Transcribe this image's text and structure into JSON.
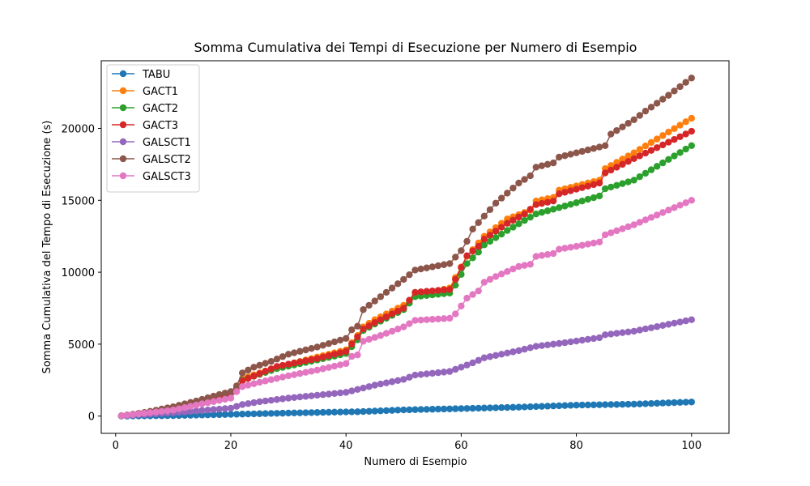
{
  "chart_data": {
    "type": "line",
    "title": "Somma Cumulativa dei Tempi di Esecuzione per Numero di Esempio",
    "xlabel": "Numero di Esempio",
    "ylabel": "Somma Cumulativa del Tempo di Esecuzione (s)",
    "xlim": [
      -2.5,
      106.5
    ],
    "ylim": [
      -1200,
      24700
    ],
    "x_ticks": [
      "0",
      "20",
      "40",
      "60",
      "80",
      "100"
    ],
    "x_tick_values": [
      0,
      20,
      40,
      60,
      80,
      100
    ],
    "y_ticks": [
      "0",
      "5000",
      "10000",
      "15000",
      "20000"
    ],
    "y_tick_values": [
      0,
      5000,
      10000,
      15000,
      20000
    ],
    "legend_position": "upper-left",
    "grid": false,
    "x": {
      "start": 1,
      "end": 100,
      "step": 1
    },
    "series": [
      {
        "name": "TABU",
        "color": "#1f77b4",
        "anchors": [
          [
            1,
            0
          ],
          [
            10,
            30
          ],
          [
            20,
            120
          ],
          [
            30,
            210
          ],
          [
            40,
            290
          ],
          [
            42,
            300
          ],
          [
            50,
            430
          ],
          [
            60,
            520
          ],
          [
            70,
            620
          ],
          [
            80,
            760
          ],
          [
            90,
            830
          ],
          [
            100,
            980
          ]
        ]
      },
      {
        "name": "GACT1",
        "color": "#ff7f0e",
        "anchors": [
          [
            1,
            20
          ],
          [
            10,
            450
          ],
          [
            15,
            1000
          ],
          [
            20,
            1650
          ],
          [
            21,
            1950
          ],
          [
            22,
            2600
          ],
          [
            28,
            3400
          ],
          [
            35,
            4100
          ],
          [
            40,
            4600
          ],
          [
            42,
            5600
          ],
          [
            43,
            6200
          ],
          [
            45,
            6700
          ],
          [
            50,
            7700
          ],
          [
            52,
            8400
          ],
          [
            58,
            8900
          ],
          [
            61,
            11100
          ],
          [
            64,
            12500
          ],
          [
            68,
            13700
          ],
          [
            72,
            14300
          ],
          [
            73,
            14950
          ],
          [
            76,
            15200
          ],
          [
            77,
            15700
          ],
          [
            84,
            16400
          ],
          [
            85,
            17200
          ],
          [
            90,
            18300
          ],
          [
            100,
            20700
          ]
        ]
      },
      {
        "name": "GACT2",
        "color": "#2ca02c",
        "anchors": [
          [
            1,
            20
          ],
          [
            10,
            430
          ],
          [
            15,
            950
          ],
          [
            20,
            1600
          ],
          [
            21,
            1900
          ],
          [
            22,
            2500
          ],
          [
            28,
            3300
          ],
          [
            35,
            3900
          ],
          [
            40,
            4350
          ],
          [
            42,
            5300
          ],
          [
            43,
            5950
          ],
          [
            45,
            6400
          ],
          [
            50,
            7400
          ],
          [
            52,
            8300
          ],
          [
            58,
            8550
          ],
          [
            59,
            9100
          ],
          [
            61,
            10600
          ],
          [
            63,
            11400
          ],
          [
            64,
            11900
          ],
          [
            68,
            12900
          ],
          [
            71,
            13600
          ],
          [
            73,
            14050
          ],
          [
            78,
            14600
          ],
          [
            84,
            15300
          ],
          [
            85,
            15800
          ],
          [
            90,
            16400
          ],
          [
            100,
            18800
          ]
        ]
      },
      {
        "name": "GACT3",
        "color": "#d62728",
        "anchors": [
          [
            1,
            20
          ],
          [
            10,
            440
          ],
          [
            15,
            960
          ],
          [
            20,
            1620
          ],
          [
            21,
            1900
          ],
          [
            22,
            2450
          ],
          [
            28,
            3450
          ],
          [
            35,
            4000
          ],
          [
            40,
            4500
          ],
          [
            42,
            5500
          ],
          [
            43,
            6050
          ],
          [
            45,
            6500
          ],
          [
            50,
            7500
          ],
          [
            52,
            8600
          ],
          [
            58,
            8800
          ],
          [
            59,
            9500
          ],
          [
            61,
            11150
          ],
          [
            63,
            11800
          ],
          [
            64,
            12300
          ],
          [
            68,
            13400
          ],
          [
            71,
            14050
          ],
          [
            73,
            14700
          ],
          [
            76,
            14950
          ],
          [
            77,
            15450
          ],
          [
            84,
            16200
          ],
          [
            85,
            16900
          ],
          [
            90,
            17900
          ],
          [
            100,
            19800
          ]
        ]
      },
      {
        "name": "GALSCT1",
        "color": "#9467bd",
        "anchors": [
          [
            1,
            20
          ],
          [
            10,
            230
          ],
          [
            20,
            550
          ],
          [
            22,
            800
          ],
          [
            25,
            1000
          ],
          [
            30,
            1250
          ],
          [
            35,
            1450
          ],
          [
            40,
            1650
          ],
          [
            43,
            1950
          ],
          [
            45,
            2150
          ],
          [
            50,
            2550
          ],
          [
            52,
            2850
          ],
          [
            58,
            3100
          ],
          [
            60,
            3400
          ],
          [
            62,
            3700
          ],
          [
            64,
            4050
          ],
          [
            70,
            4550
          ],
          [
            73,
            4850
          ],
          [
            78,
            5100
          ],
          [
            84,
            5450
          ],
          [
            85,
            5650
          ],
          [
            90,
            5900
          ],
          [
            100,
            6700
          ]
        ]
      },
      {
        "name": "GALSCT2",
        "color": "#8c564b",
        "anchors": [
          [
            1,
            20
          ],
          [
            5,
            250
          ],
          [
            10,
            650
          ],
          [
            14,
            1050
          ],
          [
            18,
            1500
          ],
          [
            20,
            1700
          ],
          [
            21,
            2100
          ],
          [
            22,
            3000
          ],
          [
            24,
            3400
          ],
          [
            27,
            3800
          ],
          [
            30,
            4300
          ],
          [
            35,
            4800
          ],
          [
            40,
            5400
          ],
          [
            41,
            6000
          ],
          [
            42,
            6250
          ],
          [
            43,
            7400
          ],
          [
            46,
            8300
          ],
          [
            50,
            9500
          ],
          [
            52,
            10150
          ],
          [
            58,
            10600
          ],
          [
            60,
            11500
          ],
          [
            61,
            12150
          ],
          [
            62,
            13000
          ],
          [
            64,
            13900
          ],
          [
            66,
            14800
          ],
          [
            70,
            16200
          ],
          [
            72,
            16700
          ],
          [
            73,
            17300
          ],
          [
            76,
            17600
          ],
          [
            77,
            18000
          ],
          [
            85,
            18800
          ],
          [
            86,
            19600
          ],
          [
            90,
            20600
          ],
          [
            92,
            21200
          ],
          [
            96,
            22300
          ],
          [
            100,
            23500
          ]
        ]
      },
      {
        "name": "GALSCT3",
        "color": "#e377c2",
        "anchors": [
          [
            1,
            20
          ],
          [
            10,
            420
          ],
          [
            15,
            850
          ],
          [
            20,
            1250
          ],
          [
            21,
            1700
          ],
          [
            22,
            2050
          ],
          [
            25,
            2350
          ],
          [
            30,
            2800
          ],
          [
            35,
            3200
          ],
          [
            40,
            3650
          ],
          [
            41,
            4150
          ],
          [
            42,
            4250
          ],
          [
            43,
            5200
          ],
          [
            46,
            5600
          ],
          [
            50,
            6200
          ],
          [
            52,
            6650
          ],
          [
            58,
            6800
          ],
          [
            59,
            7100
          ],
          [
            61,
            8200
          ],
          [
            63,
            8700
          ],
          [
            64,
            9300
          ],
          [
            66,
            9700
          ],
          [
            70,
            10400
          ],
          [
            72,
            10550
          ],
          [
            73,
            11100
          ],
          [
            76,
            11300
          ],
          [
            77,
            11600
          ],
          [
            80,
            11800
          ],
          [
            84,
            12100
          ],
          [
            85,
            12600
          ],
          [
            90,
            13300
          ],
          [
            100,
            15000
          ]
        ]
      }
    ]
  }
}
